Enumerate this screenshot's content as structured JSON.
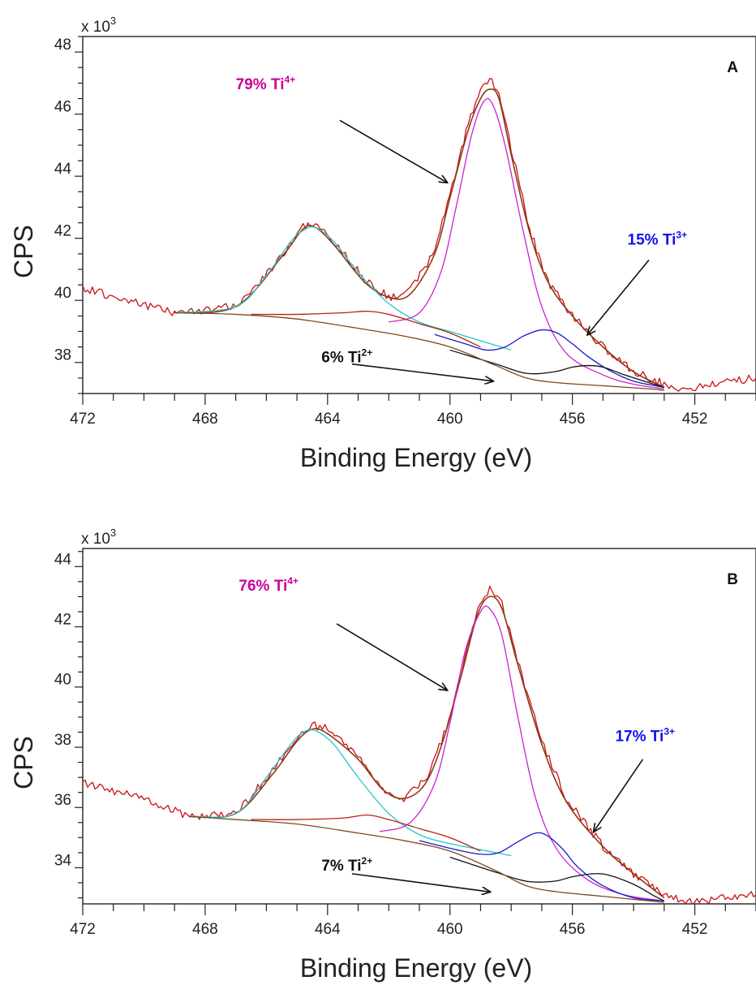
{
  "chart_data": [
    {
      "type": "line",
      "panel_label": "A",
      "xlabel": "Binding Energy (eV)",
      "ylabel": "CPS",
      "y_multiplier": "x 10",
      "y_multiplier_exp": "3",
      "xlim": [
        472,
        450
      ],
      "ylim": [
        37,
        48.5
      ],
      "x_ticks": [
        472,
        468,
        464,
        460,
        456,
        452
      ],
      "y_ticks": [
        38,
        40,
        42,
        44,
        46,
        48
      ],
      "grid": false,
      "annotations": [
        {
          "pct": "79% Ti",
          "sup": "4+",
          "color": "#cc0099",
          "text_at": [
            467.0,
            46.8
          ],
          "arrow_from": [
            463.6,
            45.8
          ],
          "arrow_to": [
            460.1,
            43.8
          ]
        },
        {
          "pct": "15% Ti",
          "sup": "3+",
          "color": "#1111ee",
          "text_at": [
            454.2,
            41.8
          ],
          "arrow_from": [
            453.5,
            41.3
          ],
          "arrow_to": [
            455.5,
            38.9
          ]
        },
        {
          "pct": "6% Ti",
          "sup": "2+",
          "color": "#111111",
          "text_at": [
            464.2,
            38.0
          ],
          "arrow_from": [
            463.2,
            37.95
          ],
          "arrow_to": [
            458.6,
            37.4
          ]
        }
      ],
      "series": [
        {
          "color": "#cc1111",
          "width": 1.3,
          "noise": 0.13,
          "seed": 7,
          "x": [
            472,
            469,
            467,
            465.5,
            464.8,
            464.4,
            463.8,
            462.8,
            462.0,
            461.3,
            460.5,
            460.0,
            459.4,
            459.0,
            458.7,
            458.4,
            458.0,
            457.4,
            456.8,
            456.0,
            455.0,
            454.0,
            453.0,
            452.3,
            451.5,
            450
          ],
          "y": [
            40.4,
            39.6,
            39.8,
            41.4,
            42.4,
            42.45,
            41.9,
            40.7,
            40.1,
            40.3,
            41.6,
            43.4,
            45.7,
            46.8,
            47.1,
            46.7,
            44.9,
            42.3,
            40.6,
            39.5,
            38.5,
            37.7,
            37.3,
            37.1,
            37.3,
            37.5
          ]
        },
        {
          "color": "#8b3a1a",
          "width": 1.6,
          "x": [
            469,
            467,
            465.5,
            464.8,
            464.4,
            463.8,
            462.8,
            462.0,
            461.3,
            460.5,
            460.0,
            459.4,
            459.0,
            458.7,
            458.4,
            458.0,
            457.4,
            456.8,
            456.0,
            455.0,
            454.0,
            453.0
          ],
          "y": [
            39.6,
            39.8,
            41.4,
            42.3,
            42.35,
            41.8,
            40.6,
            40.1,
            40.2,
            41.5,
            43.3,
            45.5,
            46.5,
            46.8,
            46.5,
            44.7,
            42.2,
            40.6,
            39.5,
            38.5,
            37.7,
            37.2
          ]
        },
        {
          "color": "#22c8c8",
          "width": 1.3,
          "x": [
            469,
            467,
            466,
            465.2,
            464.8,
            464.4,
            463.8,
            463.0,
            462.0,
            461.0,
            460.0,
            459.0,
            458.0
          ],
          "y": [
            39.6,
            39.8,
            40.8,
            41.9,
            42.25,
            42.35,
            41.9,
            40.9,
            39.9,
            39.3,
            39.0,
            38.7,
            38.4
          ]
        },
        {
          "color": "#cc22cc",
          "width": 1.3,
          "x": [
            462.0,
            461.0,
            460.3,
            459.8,
            459.3,
            458.9,
            458.6,
            458.2,
            457.6,
            457.0,
            456.2,
            455.0,
            454.0,
            453.0
          ],
          "y": [
            39.3,
            39.6,
            40.9,
            43.0,
            45.3,
            46.4,
            46.3,
            45.0,
            42.2,
            39.8,
            38.3,
            37.6,
            37.3,
            37.15
          ]
        },
        {
          "color": "#1a1acc",
          "width": 1.3,
          "x": [
            460.5,
            459.5,
            458.8,
            458.2,
            457.6,
            457.0,
            456.5,
            456.0,
            455.5,
            454.8,
            454.0,
            453.0
          ],
          "y": [
            38.9,
            38.6,
            38.4,
            38.5,
            38.85,
            39.05,
            38.95,
            38.6,
            38.2,
            37.75,
            37.4,
            37.2
          ]
        },
        {
          "color": "#111111",
          "width": 1.3,
          "x": [
            460,
            458.5,
            457.5,
            456.6,
            456.0,
            455.5,
            455.0,
            454.3,
            453.5,
            453.0
          ],
          "y": [
            38.4,
            37.95,
            37.65,
            37.7,
            37.85,
            37.9,
            37.85,
            37.6,
            37.35,
            37.2
          ]
        },
        {
          "color": "#bb2211",
          "width": 1.3,
          "x": [
            466.5,
            465,
            463.5,
            462.7,
            462.0,
            461.0,
            460.0,
            459.0
          ],
          "y": [
            39.55,
            39.55,
            39.6,
            39.65,
            39.55,
            39.25,
            38.95,
            38.5
          ]
        },
        {
          "color": "#7a4a20",
          "width": 1.3,
          "x": [
            469,
            467,
            465,
            463,
            461.5,
            460,
            458.5,
            457.5,
            456.5,
            455,
            453.5,
            453
          ],
          "y": [
            39.6,
            39.55,
            39.4,
            39.1,
            38.85,
            38.5,
            37.9,
            37.5,
            37.35,
            37.25,
            37.15,
            37.1
          ]
        }
      ]
    },
    {
      "type": "line",
      "panel_label": "B",
      "xlabel": "Binding Energy (eV)",
      "ylabel": "CPS",
      "y_multiplier": "x 10",
      "y_multiplier_exp": "3",
      "xlim": [
        472,
        450
      ],
      "ylim": [
        32.8,
        44.6
      ],
      "x_ticks": [
        472,
        468,
        464,
        460,
        456,
        452
      ],
      "y_ticks": [
        34,
        36,
        38,
        40,
        42,
        44
      ],
      "grid": false,
      "annotations": [
        {
          "pct": "76% Ti",
          "sup": "4+",
          "color": "#cc0099",
          "text_at": [
            466.9,
            43.2
          ],
          "arrow_from": [
            463.7,
            42.1
          ],
          "arrow_to": [
            460.1,
            39.9
          ]
        },
        {
          "pct": "17% Ti",
          "sup": "3+",
          "color": "#1111ee",
          "text_at": [
            454.6,
            38.2
          ],
          "arrow_from": [
            453.7,
            37.6
          ],
          "arrow_to": [
            455.3,
            35.2
          ]
        },
        {
          "pct": "7% Ti",
          "sup": "2+",
          "color": "#111111",
          "text_at": [
            464.2,
            33.9
          ],
          "arrow_from": [
            463.2,
            33.8
          ],
          "arrow_to": [
            458.7,
            33.2
          ]
        }
      ],
      "series": [
        {
          "color": "#cc1111",
          "width": 1.3,
          "noise": 0.13,
          "seed": 19,
          "x": [
            472,
            470,
            468.5,
            467,
            465.8,
            465.0,
            464.5,
            464.0,
            463.0,
            462.2,
            461.5,
            460.8,
            460.2,
            459.6,
            459.1,
            458.7,
            458.3,
            457.8,
            457.0,
            456.2,
            455.0,
            454.0,
            453.0,
            452.0,
            451.0,
            450
          ],
          "y": [
            36.8,
            36.3,
            35.7,
            35.8,
            37.2,
            38.3,
            38.75,
            38.6,
            37.7,
            36.6,
            36.3,
            36.9,
            38.4,
            40.6,
            42.5,
            43.3,
            42.8,
            40.9,
            38.2,
            36.3,
            34.7,
            33.8,
            33.1,
            32.85,
            33.0,
            33.1
          ]
        },
        {
          "color": "#8b3a1a",
          "width": 1.6,
          "x": [
            468.5,
            467,
            465.8,
            465.0,
            464.5,
            464.0,
            463.0,
            462.2,
            461.5,
            460.8,
            460.2,
            459.6,
            459.1,
            458.7,
            458.3,
            457.8,
            457.0,
            456.2,
            455.0,
            454.0,
            453.0
          ],
          "y": [
            35.7,
            35.8,
            37.1,
            38.2,
            38.6,
            38.45,
            37.6,
            36.6,
            36.3,
            36.8,
            38.3,
            40.5,
            42.4,
            43.0,
            42.6,
            40.8,
            38.1,
            36.2,
            34.7,
            33.8,
            33.0
          ]
        },
        {
          "color": "#22c8c8",
          "width": 1.3,
          "x": [
            468.5,
            467,
            466,
            465.2,
            464.8,
            464.4,
            463.8,
            463.0,
            462.0,
            461.0,
            460.0,
            459.0,
            458.0
          ],
          "y": [
            35.7,
            35.8,
            37.0,
            38.1,
            38.5,
            38.55,
            38.1,
            37.0,
            35.8,
            35.1,
            34.8,
            34.6,
            34.4
          ]
        },
        {
          "color": "#cc22cc",
          "width": 1.3,
          "x": [
            462.3,
            461.3,
            460.5,
            460.0,
            459.5,
            459.0,
            458.7,
            458.3,
            457.8,
            457.2,
            456.5,
            455.5,
            454.3,
            453.0
          ],
          "y": [
            35.2,
            35.5,
            36.8,
            38.8,
            41.2,
            42.5,
            42.6,
            41.7,
            39.1,
            36.3,
            34.6,
            33.6,
            33.1,
            32.9
          ]
        },
        {
          "color": "#1a1acc",
          "width": 1.3,
          "x": [
            461,
            459.8,
            459,
            458.4,
            457.8,
            457.2,
            456.8,
            456.3,
            455.8,
            455.0,
            454.0,
            453.0
          ],
          "y": [
            34.9,
            34.6,
            34.45,
            34.5,
            34.85,
            35.15,
            35.05,
            34.6,
            34.0,
            33.4,
            33.0,
            32.9
          ]
        },
        {
          "color": "#111111",
          "width": 1.3,
          "x": [
            460,
            458.5,
            457.5,
            456.6,
            456.0,
            455.3,
            454.8,
            454.0,
            453.3,
            453.0
          ],
          "y": [
            34.35,
            33.85,
            33.55,
            33.55,
            33.7,
            33.8,
            33.75,
            33.45,
            33.05,
            32.9
          ]
        },
        {
          "color": "#bb2211",
          "width": 1.3,
          "x": [
            466.5,
            465,
            463.5,
            462.7,
            462.0,
            461.0,
            460.0,
            459.0
          ],
          "y": [
            35.6,
            35.6,
            35.65,
            35.75,
            35.6,
            35.3,
            35.0,
            34.55
          ]
        },
        {
          "color": "#7a4a20",
          "width": 1.3,
          "x": [
            468.5,
            467,
            465,
            463,
            461.5,
            460,
            458.5,
            457.5,
            456.5,
            455,
            453.5,
            453
          ],
          "y": [
            35.7,
            35.6,
            35.45,
            35.15,
            34.9,
            34.55,
            33.9,
            33.4,
            33.2,
            33.05,
            32.9,
            32.85
          ]
        }
      ]
    }
  ]
}
